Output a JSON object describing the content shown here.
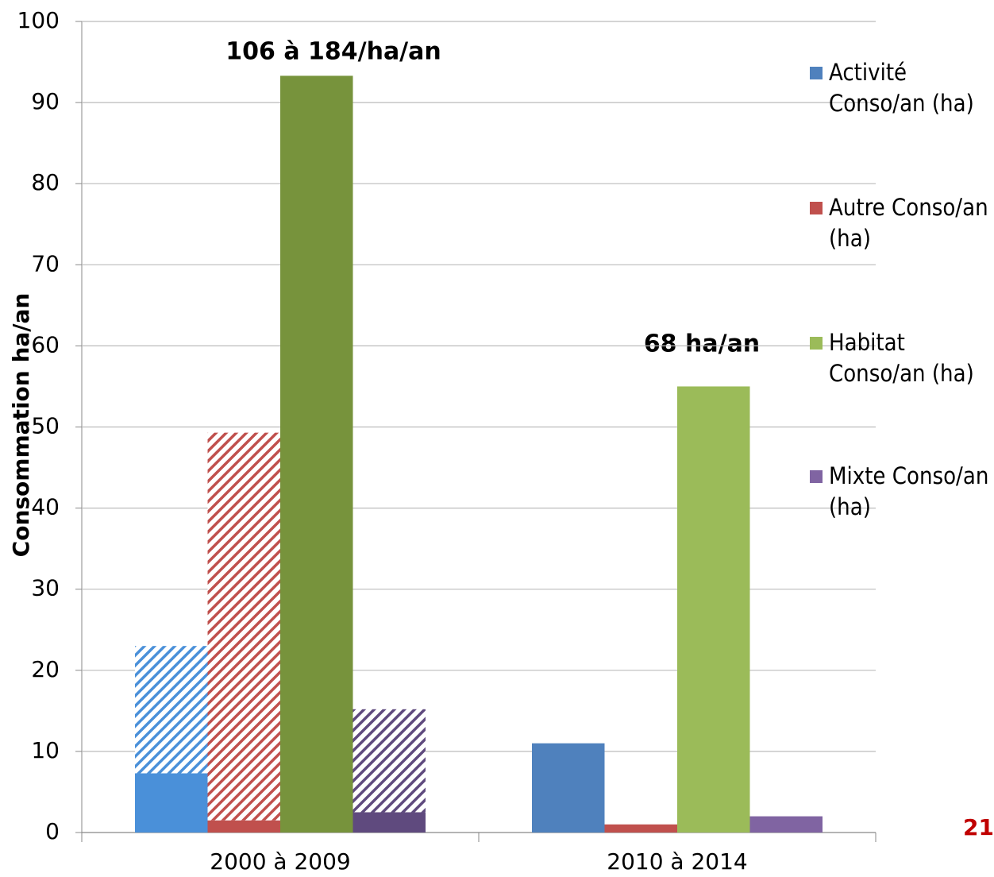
{
  "chart_data": {
    "type": "bar",
    "ylabel": "Consommation ha/an",
    "categories": [
      "2000 à 2009",
      "2010 à 2014"
    ],
    "series": [
      {
        "name": "Activité Conso/an (ha)",
        "color": "#4f81bd",
        "colors": [
          "#4a90d9",
          "#4f81bd"
        ],
        "values": [
          7.3,
          11
        ],
        "extra_values": [
          15.7,
          null
        ]
      },
      {
        "name": "Autre Conso/an (ha)",
        "color": "#c0504d",
        "colors": [
          "#c0504d",
          "#c0504d"
        ],
        "values": [
          1.5,
          1
        ],
        "extra_values": [
          47.8,
          null
        ]
      },
      {
        "name": "Habitat Conso/an (ha)",
        "color": "#9bbb59",
        "colors": [
          "#77933c",
          "#9bbb59"
        ],
        "values": [
          93.3,
          55
        ],
        "extra_values": [
          null,
          null
        ]
      },
      {
        "name": "Mixte Conso/an (ha)",
        "color": "#8064a2",
        "colors": [
          "#5f4a7e",
          "#8064a2"
        ],
        "values": [
          2.5,
          2
        ],
        "extra_values": [
          12.7,
          null
        ]
      }
    ],
    "annotations": [
      "106 à 184/ha/an",
      "68 ha/an"
    ],
    "ylim": [
      0,
      100
    ],
    "yticks": [
      0,
      10,
      20,
      30,
      40,
      50,
      60,
      70,
      80,
      90,
      100
    ],
    "grid": true,
    "legend": "right",
    "page_number": "21"
  }
}
